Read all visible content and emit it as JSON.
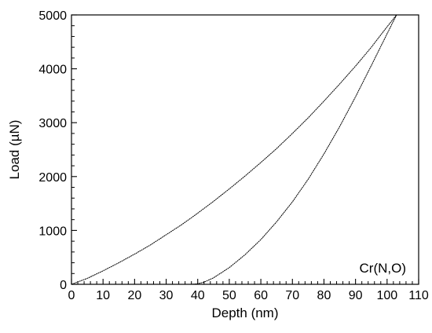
{
  "chart_data": {
    "type": "line",
    "title": "",
    "xlabel": "Depth (nm)",
    "ylabel": "Load (µN)",
    "xlim": [
      0,
      110
    ],
    "ylim": [
      0,
      5000
    ],
    "x_ticks": [
      0,
      10,
      20,
      30,
      40,
      50,
      60,
      70,
      80,
      90,
      100,
      110
    ],
    "y_ticks": [
      0,
      1000,
      2000,
      3000,
      4000,
      5000
    ],
    "x_tick_labels": [
      "0",
      "10",
      "20",
      "30",
      "40",
      "50",
      "60",
      "70",
      "80",
      "90",
      "100",
      "110"
    ],
    "y_tick_labels": [
      "0",
      "1000",
      "2000",
      "3000",
      "4000",
      "5000"
    ],
    "annotation": "Cr(N,O)",
    "grid": false,
    "series": [
      {
        "color": "#000000",
        "x": [
          0,
          5,
          10,
          15,
          20,
          25,
          30,
          35,
          40,
          45,
          50,
          55,
          60,
          65,
          70,
          75,
          80,
          85,
          90,
          95,
          100,
          103
        ],
        "y": [
          0,
          110,
          250,
          400,
          560,
          730,
          920,
          1110,
          1320,
          1540,
          1770,
          2010,
          2260,
          2520,
          2800,
          3090,
          3400,
          3720,
          4050,
          4400,
          4780,
          5000
        ]
      },
      {
        "color": "#000000",
        "x": [
          103,
          100,
          95,
          90,
          85,
          80,
          75,
          70,
          65,
          60,
          55,
          50,
          45,
          42,
          40,
          38
        ],
        "y": [
          5000,
          4650,
          4060,
          3480,
          2930,
          2420,
          1950,
          1530,
          1160,
          830,
          550,
          310,
          120,
          40,
          10,
          0
        ]
      }
    ]
  }
}
